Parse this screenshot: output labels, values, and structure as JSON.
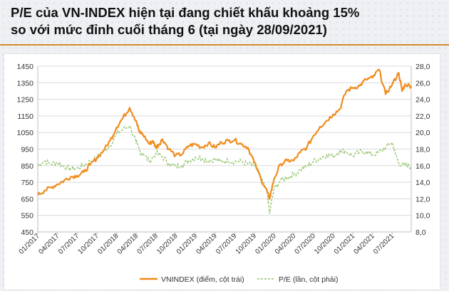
{
  "title_line1": "P/E của VN-INDEX hiện tại đang chiết khấu khoảng 15%",
  "title_line2": "so với mức đỉnh cuối tháng 6 (tại ngày 28/09/2021)",
  "colors": {
    "vnindex": "#f08c1e",
    "pe": "#92c36b",
    "rule": "#d48a2c"
  },
  "chart_data": {
    "type": "line",
    "title": "P/E của VN-INDEX hiện tại đang chiết khấu khoảng 15% so với mức đỉnh cuối tháng 6 (tại ngày 28/09/2021)",
    "x_tick_labels": [
      "01/2017",
      "04/2017",
      "07/2017",
      "10/2017",
      "01/2018",
      "04/2018",
      "07/2018",
      "10/2018",
      "01/2019",
      "04/2019",
      "07/2019",
      "10/2019",
      "01/2020",
      "04/2020",
      "07/2020",
      "10/2020",
      "01/2021",
      "04/2021",
      "07/2021"
    ],
    "x_range": [
      0,
      56.9
    ],
    "y_left": {
      "min": 450,
      "max": 1450,
      "step": 100,
      "ticks": [
        1450,
        1350,
        1250,
        1150,
        1050,
        950,
        850,
        750,
        650,
        550,
        450
      ]
    },
    "y_right": {
      "min": 8.0,
      "max": 28.0,
      "step": 2,
      "ticks": [
        "28,0",
        "26,0",
        "24,0",
        "22,0",
        "20,0",
        "18,0",
        "16,0",
        "14,0",
        "12,0",
        "10,0",
        "8,0"
      ]
    },
    "legend_position": "bottom",
    "series": [
      {
        "name": "VNINDEX (điểm, cột trái)",
        "axis": "left",
        "style": "solid",
        "x": [
          0,
          1,
          2,
          3,
          4,
          5,
          6,
          7,
          8,
          9,
          10,
          11,
          12,
          13,
          14,
          15,
          15.5,
          16,
          17,
          17.5,
          18,
          18.5,
          19,
          20,
          21,
          22,
          23,
          24,
          25,
          26,
          27,
          28,
          29,
          30,
          31,
          32,
          33,
          34,
          35,
          35.3,
          36,
          37,
          38,
          39,
          40,
          41,
          42,
          43,
          44,
          45,
          46,
          47,
          48,
          49,
          50,
          51,
          52,
          53,
          54,
          55,
          55.5,
          56,
          56.9
        ],
        "values": [
          672,
          700,
          718,
          738,
          760,
          782,
          790,
          810,
          855,
          895,
          940,
          1000,
          1080,
          1140,
          1200,
          1120,
          1050,
          1040,
          980,
          1000,
          960,
          980,
          1010,
          950,
          910,
          920,
          970,
          980,
          960,
          985,
          960,
          990,
          1000,
          1005,
          980,
          960,
          870,
          770,
          690,
          650,
          770,
          860,
          880,
          880,
          930,
          960,
          1030,
          1085,
          1120,
          1160,
          1190,
          1300,
          1320,
          1330,
          1370,
          1380,
          1430,
          1280,
          1340,
          1410,
          1300,
          1340,
          1330
        ]
      },
      {
        "name": "P/E (lần, cột phải)",
        "axis": "right",
        "style": "dashed",
        "x": [
          0,
          1,
          2,
          3,
          4,
          5,
          6,
          7,
          8,
          9,
          10,
          11,
          12,
          13,
          14,
          15,
          15.5,
          16,
          17,
          18,
          19,
          20,
          21,
          22,
          23,
          24,
          25,
          26,
          27,
          28,
          29,
          30,
          31,
          32,
          33,
          34,
          35,
          35.3,
          36,
          37,
          38,
          39,
          40,
          41,
          42,
          43,
          44,
          45,
          46,
          47,
          48,
          49,
          50,
          51,
          52,
          53,
          54,
          54.5,
          55,
          56,
          56.9
        ],
        "values": [
          16.0,
          16.6,
          16.2,
          16.4,
          15.9,
          15.6,
          15.7,
          16.0,
          16.5,
          17.0,
          17.8,
          18.4,
          19.8,
          20.4,
          20.8,
          18.8,
          17.8,
          17.5,
          16.5,
          17.5,
          17.1,
          16.2,
          15.9,
          16.1,
          16.6,
          17.0,
          16.9,
          16.6,
          16.8,
          16.4,
          16.6,
          16.5,
          16.5,
          16.2,
          16.0,
          14.6,
          12.5,
          10.2,
          13.2,
          14.2,
          14.6,
          14.9,
          15.5,
          15.9,
          16.5,
          16.9,
          17.3,
          17.1,
          17.8,
          17.7,
          17.2,
          17.6,
          17.7,
          17.3,
          17.6,
          18.2,
          18.8,
          17.4,
          16.3,
          16.0,
          15.8
        ]
      }
    ]
  }
}
